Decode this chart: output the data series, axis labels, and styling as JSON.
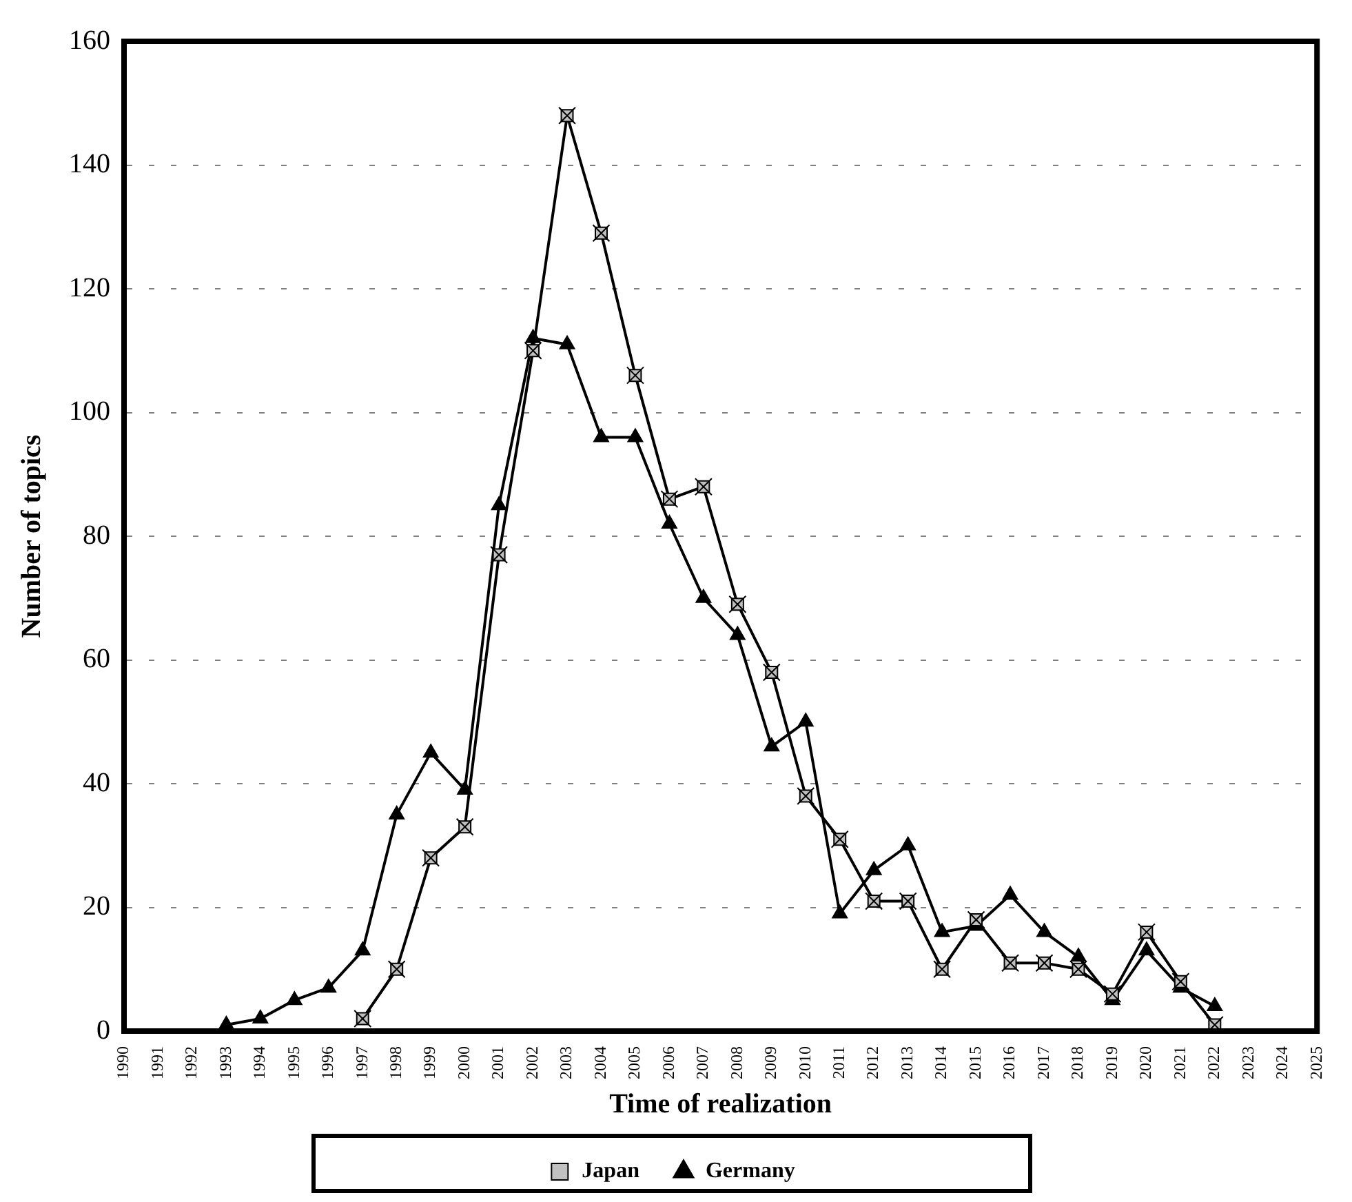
{
  "chart_data": {
    "type": "line",
    "xlabel": "Time of realization",
    "ylabel": "Number of topics",
    "xlim": [
      1990,
      2025
    ],
    "xticks": [
      1990,
      1991,
      1992,
      1993,
      1994,
      1995,
      1996,
      1997,
      1998,
      1999,
      2000,
      2001,
      2002,
      2003,
      2004,
      2005,
      2006,
      2007,
      2008,
      2009,
      2010,
      2011,
      2012,
      2013,
      2014,
      2015,
      2016,
      2017,
      2018,
      2019,
      2020,
      2021,
      2022,
      2023,
      2024,
      2025
    ],
    "ylim": [
      0,
      160
    ],
    "yticks": [
      0,
      20,
      40,
      60,
      80,
      100,
      120,
      140,
      160
    ],
    "grid": "y",
    "legend": "bottom",
    "series": [
      {
        "name": "Japan",
        "color": "#000000",
        "marker": "square",
        "x": [
          1997,
          1998,
          1999,
          2000,
          2001,
          2002,
          2003,
          2004,
          2005,
          2006,
          2007,
          2008,
          2009,
          2010,
          2011,
          2012,
          2013,
          2014,
          2015,
          2016,
          2017,
          2018,
          2019,
          2020,
          2021,
          2022
        ],
        "values": [
          2,
          10,
          28,
          33,
          77,
          110,
          148,
          129,
          106,
          86,
          88,
          69,
          58,
          38,
          31,
          21,
          21,
          10,
          18,
          11,
          11,
          10,
          6,
          16,
          8,
          1
        ]
      },
      {
        "name": "Germany",
        "color": "#000000",
        "marker": "triangle",
        "x": [
          1993,
          1994,
          1995,
          1996,
          1997,
          1998,
          1999,
          2000,
          2001,
          2002,
          2003,
          2004,
          2005,
          2006,
          2007,
          2008,
          2009,
          2010,
          2011,
          2012,
          2013,
          2014,
          2015,
          2016,
          2017,
          2018,
          2019,
          2020,
          2021,
          2022
        ],
        "values": [
          1,
          2,
          5,
          7,
          13,
          35,
          45,
          39,
          85,
          112,
          111,
          96,
          96,
          82,
          70,
          64,
          46,
          50,
          19,
          26,
          30,
          16,
          17,
          22,
          16,
          12,
          5,
          13,
          7,
          4
        ]
      }
    ]
  }
}
